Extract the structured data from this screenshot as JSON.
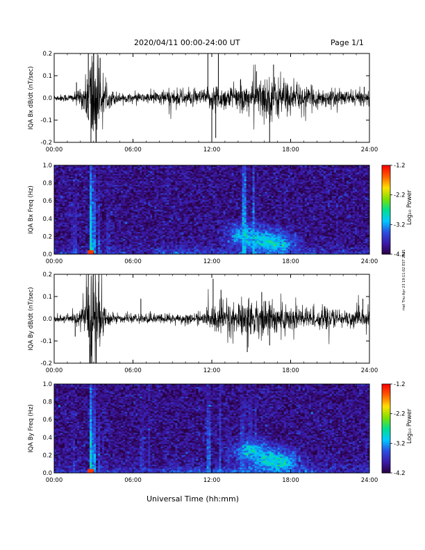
{
  "header": {
    "date_range": "2020/04/11  00:00-24:00 UT",
    "page": "Page 1/1"
  },
  "footer": {
    "xlabel": "Universal Time (hh:mm)",
    "side_note": "mel Thu Apr 23 19:11:02 EST 2021"
  },
  "colors": {
    "trace": "#000000",
    "colormap": [
      "#2a0040",
      "#3b1aa8",
      "#2a4fe0",
      "#00c8ff",
      "#00e090",
      "#7fe000",
      "#ffe000",
      "#ff6000",
      "#ff0000"
    ]
  },
  "chart_data": [
    {
      "type": "line",
      "name": "IQA Bx dB/dt",
      "ylabel": "IQA Bx dB/dt (nT/sec)",
      "xlim": [
        0,
        24
      ],
      "ylim": [
        -0.2,
        0.2
      ],
      "x_ticks": [
        "00:00",
        "06:00",
        "12:00",
        "18:00",
        "24:00"
      ],
      "y_ticks": [
        "0.2",
        "0.1",
        "0.0",
        "-0.1",
        "-0.2"
      ],
      "y_tick_values": [
        0.2,
        0.1,
        0.0,
        -0.1,
        -0.2
      ],
      "activity": [
        [
          0,
          0.012
        ],
        [
          1.5,
          0.018
        ],
        [
          2.0,
          0.03
        ],
        [
          2.5,
          0.09
        ],
        [
          2.7,
          0.2
        ],
        [
          3.0,
          0.25
        ],
        [
          3.3,
          0.2
        ],
        [
          3.6,
          0.06
        ],
        [
          4.0,
          0.04
        ],
        [
          5.0,
          0.02
        ],
        [
          6.0,
          0.015
        ],
        [
          7.0,
          0.02
        ],
        [
          8.0,
          0.03
        ],
        [
          9.0,
          0.035
        ],
        [
          10.0,
          0.035
        ],
        [
          11.0,
          0.03
        ],
        [
          11.8,
          0.04
        ],
        [
          12.2,
          0.06
        ],
        [
          13.0,
          0.045
        ],
        [
          14.0,
          0.05
        ],
        [
          15.0,
          0.055
        ],
        [
          15.5,
          0.07
        ],
        [
          16.0,
          0.085
        ],
        [
          16.5,
          0.09
        ],
        [
          17.0,
          0.08
        ],
        [
          18.0,
          0.06
        ],
        [
          19.0,
          0.045
        ],
        [
          20.0,
          0.04
        ],
        [
          21.0,
          0.035
        ],
        [
          22.0,
          0.03
        ],
        [
          23.0,
          0.03
        ],
        [
          24.0,
          0.025
        ]
      ],
      "spikes": [
        [
          2.6,
          0.2
        ],
        [
          2.8,
          -0.2
        ],
        [
          3.0,
          0.2
        ],
        [
          3.2,
          -0.2
        ],
        [
          3.5,
          0.18
        ],
        [
          1.7,
          0.07
        ],
        [
          11.7,
          0.2
        ],
        [
          12.0,
          -0.2
        ],
        [
          12.5,
          0.2
        ],
        [
          12.3,
          -0.18
        ],
        [
          16.4,
          -0.2
        ],
        [
          16.7,
          0.15
        ],
        [
          15.4,
          0.12
        ],
        [
          23.6,
          0.05
        ]
      ]
    },
    {
      "type": "heatmap",
      "name": "IQA Bx Freq",
      "ylabel": "IQA Bx Freq (Hz)",
      "xlim": [
        0,
        24
      ],
      "ylim": [
        0,
        1.0
      ],
      "x_ticks": [
        "00:00",
        "06:00",
        "12:00",
        "18:00",
        "24:00"
      ],
      "y_ticks": [
        "1.0",
        "0.8",
        "0.6",
        "0.4",
        "0.2",
        "0.0"
      ],
      "y_tick_values": [
        1.0,
        0.8,
        0.6,
        0.4,
        0.2,
        0.0
      ],
      "colorbar": {
        "label": "Log₁₀ Power",
        "range": [
          -4.2,
          -1.2
        ],
        "ticks": [
          "-1.2",
          "-2.2",
          "-3.2",
          "-4.2"
        ],
        "tick_values": [
          -1.2,
          -2.2,
          -3.2,
          -4.2
        ]
      },
      "columns": [
        [
          0,
          -3.9
        ],
        [
          1.6,
          -3.6
        ],
        [
          2.75,
          -2.8
        ],
        [
          3.0,
          -3.2
        ],
        [
          3.4,
          -3.5
        ],
        [
          4.1,
          -3.6
        ],
        [
          14.5,
          -3.0
        ],
        [
          15.2,
          -3.1
        ]
      ],
      "blob": [
        [
          14.6,
          0.22,
          -3.0
        ],
        [
          15.8,
          0.15,
          -2.9
        ],
        [
          16.8,
          0.12,
          -2.9
        ]
      ]
    },
    {
      "type": "line",
      "name": "IQA By dB/dt",
      "ylabel": "IQA By dB/dt (nT/sec)",
      "xlim": [
        0,
        24
      ],
      "ylim": [
        -0.2,
        0.2
      ],
      "x_ticks": [
        "00:00",
        "06:00",
        "12:00",
        "18:00",
        "24:00"
      ],
      "y_ticks": [
        "0.2",
        "0.1",
        "0.0",
        "-0.1",
        "-0.2"
      ],
      "y_tick_values": [
        0.2,
        0.1,
        0.0,
        -0.1,
        -0.2
      ],
      "activity": [
        [
          0,
          0.012
        ],
        [
          1.5,
          0.02
        ],
        [
          2.0,
          0.03
        ],
        [
          2.5,
          0.1
        ],
        [
          2.7,
          0.2
        ],
        [
          3.0,
          0.25
        ],
        [
          3.3,
          0.2
        ],
        [
          3.6,
          0.08
        ],
        [
          4.0,
          0.03
        ],
        [
          5.0,
          0.015
        ],
        [
          6.0,
          0.015
        ],
        [
          7.0,
          0.02
        ],
        [
          8.0,
          0.02
        ],
        [
          9.0,
          0.02
        ],
        [
          10.0,
          0.02
        ],
        [
          11.0,
          0.02
        ],
        [
          11.8,
          0.03
        ],
        [
          12.2,
          0.07
        ],
        [
          13.0,
          0.065
        ],
        [
          14.0,
          0.065
        ],
        [
          15.0,
          0.07
        ],
        [
          15.5,
          0.07
        ],
        [
          16.0,
          0.07
        ],
        [
          16.5,
          0.065
        ],
        [
          17.0,
          0.065
        ],
        [
          18.0,
          0.055
        ],
        [
          19.0,
          0.05
        ],
        [
          20.0,
          0.04
        ],
        [
          21.0,
          0.04
        ],
        [
          22.0,
          0.035
        ],
        [
          23.0,
          0.035
        ],
        [
          24.0,
          0.03
        ]
      ],
      "spikes": [
        [
          2.6,
          0.2
        ],
        [
          2.8,
          -0.2
        ],
        [
          3.0,
          0.2
        ],
        [
          3.2,
          -0.2
        ],
        [
          3.4,
          0.2
        ],
        [
          1.6,
          -0.08
        ],
        [
          6.6,
          0.09
        ],
        [
          12.1,
          0.18
        ],
        [
          12.7,
          0.13
        ],
        [
          14.7,
          -0.15
        ],
        [
          15.8,
          0.12
        ],
        [
          16.4,
          -0.12
        ],
        [
          23.5,
          0.09
        ]
      ]
    },
    {
      "type": "heatmap",
      "name": "IQA By Freq",
      "ylabel": "IQA By Freq (Hz)",
      "xlim": [
        0,
        24
      ],
      "ylim": [
        0,
        1.0
      ],
      "x_ticks": [
        "00:00",
        "06:00",
        "12:00",
        "18:00",
        "24:00"
      ],
      "y_ticks": [
        "1.0",
        "0.8",
        "0.6",
        "0.4",
        "0.2",
        "0.0"
      ],
      "y_tick_values": [
        1.0,
        0.8,
        0.6,
        0.4,
        0.2,
        0.0
      ],
      "colorbar": {
        "label": "Log₁₀ Power",
        "range": [
          -4.2,
          -1.2
        ],
        "ticks": [
          "-1.2",
          "-2.2",
          "-3.2",
          "-4.2"
        ],
        "tick_values": [
          -1.2,
          -2.2,
          -3.2,
          -4.2
        ]
      },
      "columns": [
        [
          1.5,
          -3.6
        ],
        [
          2.75,
          -2.8
        ],
        [
          3.0,
          -3.2
        ],
        [
          3.4,
          -3.5
        ],
        [
          6.7,
          -3.6
        ],
        [
          7.2,
          -3.6
        ],
        [
          11.8,
          -3.3
        ],
        [
          12.6,
          -3.4
        ],
        [
          13.3,
          -3.6
        ],
        [
          14.3,
          -3.4
        ],
        [
          14.9,
          -3.4
        ],
        [
          15.3,
          -3.4
        ]
      ],
      "blob": [
        [
          15.0,
          0.25,
          -3.0
        ],
        [
          16.3,
          0.15,
          -2.9
        ],
        [
          17.2,
          0.12,
          -2.9
        ]
      ]
    }
  ]
}
